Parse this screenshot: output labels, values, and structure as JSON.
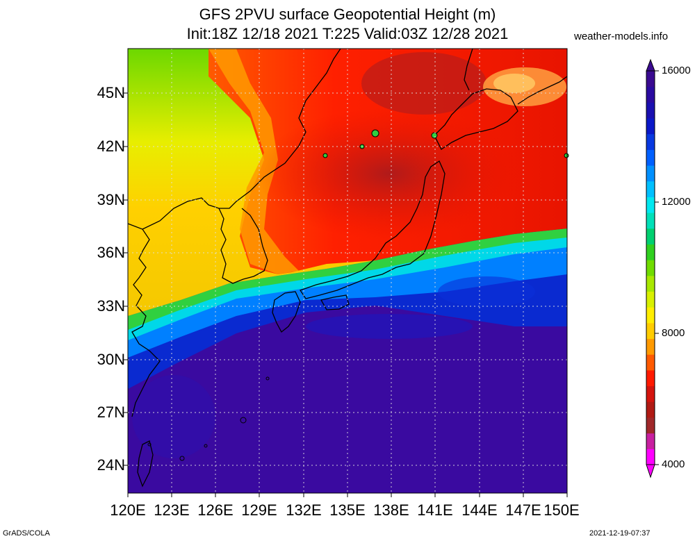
{
  "title": {
    "line1": "GFS 2PVU surface Geopotential Height (m)",
    "line2": "Init:18Z 12/18 2021 T:225 Valid:03Z 12/28 2021"
  },
  "site": "weather-models.info",
  "lat_labels": [
    "45N",
    "42N",
    "39N",
    "36N",
    "33N",
    "30N",
    "27N",
    "24N"
  ],
  "lon_labels": [
    "120E",
    "123E",
    "126E",
    "129E",
    "132E",
    "135E",
    "138E",
    "141E",
    "144E",
    "147E",
    "150E"
  ],
  "colorbar": {
    "labels": [
      "16000",
      "12000",
      "8000",
      "4000"
    ],
    "colors": [
      "#ff00ff",
      "#c820a0",
      "#a0282a",
      "#b01a14",
      "#d4140e",
      "#ff1a00",
      "#ff5a00",
      "#ff9a00",
      "#ffcc00",
      "#ffee00",
      "#d8f000",
      "#a8e800",
      "#70dc00",
      "#30d020",
      "#00d070",
      "#00e0b8",
      "#00e8f0",
      "#00c0ff",
      "#0090ff",
      "#0060ff",
      "#0838e0",
      "#0a18c8",
      "#1a10b0",
      "#2a0aa0",
      "#3a0a90"
    ],
    "min": 4000,
    "max": 16000
  },
  "footer": {
    "left": "GrADS/COLA",
    "right": "2021-12-19-07:37"
  }
}
